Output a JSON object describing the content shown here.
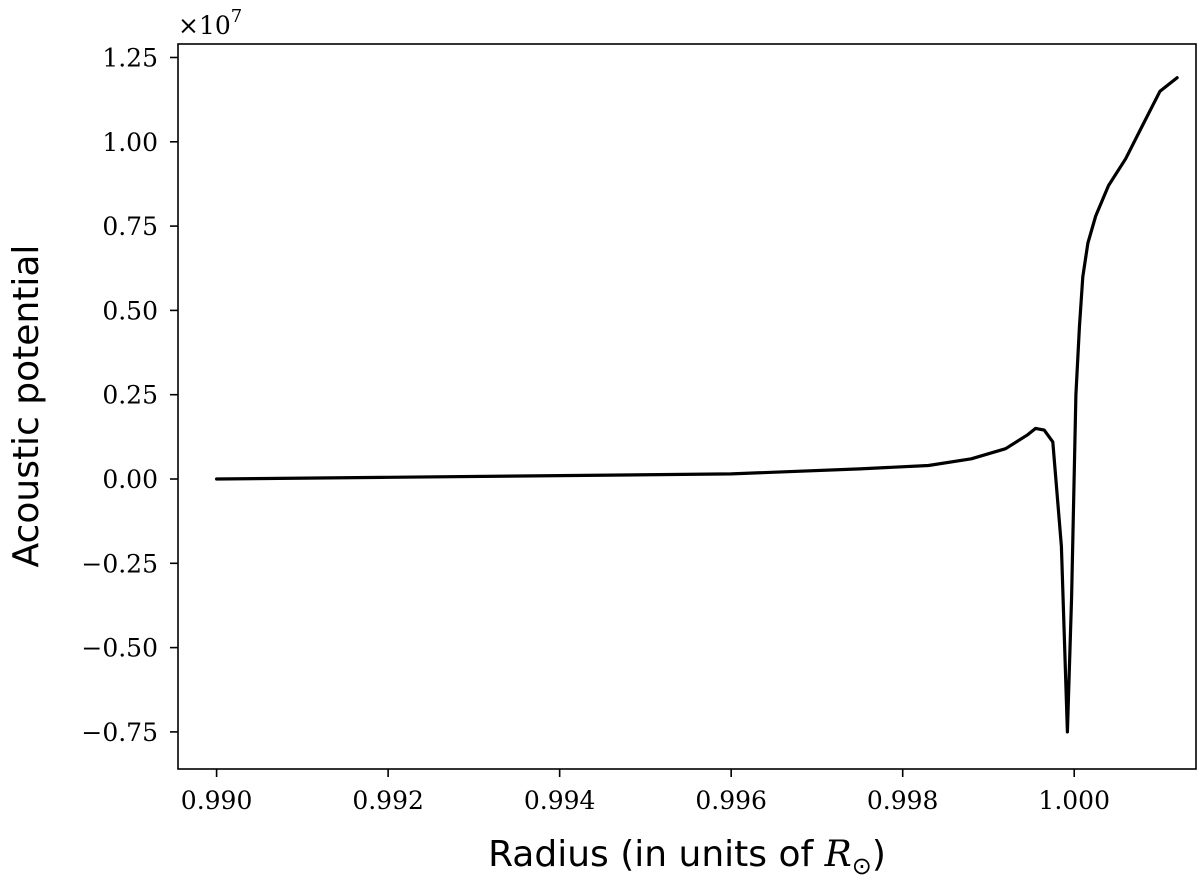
{
  "chart_data": {
    "type": "line",
    "title": "",
    "xlabel": "Radius (in units of ",
    "xlabel_math": "R",
    "xlabel_subscript": "⊙",
    "xlabel_end": ")",
    "ylabel": "Acoustic potential",
    "y_offset_base": "×10",
    "y_offset_exp": "7",
    "xlim": [
      0.98955,
      1.00142
    ],
    "ylim": [
      -0.86,
      1.29
    ],
    "y_scale_note": "values in units of 1e7",
    "grid": false,
    "legend": "none",
    "line_color": "#000000",
    "x_ticks": [
      0.99,
      0.992,
      0.994,
      0.996,
      0.998,
      1.0
    ],
    "x_tick_labels": [
      "0.990",
      "0.992",
      "0.994",
      "0.996",
      "0.998",
      "1.000"
    ],
    "y_ticks": [
      -0.75,
      -0.5,
      -0.25,
      0.0,
      0.25,
      0.5,
      0.75,
      1.0,
      1.25
    ],
    "y_tick_labels": [
      "−0.75",
      "−0.50",
      "−0.25",
      "0.00",
      "0.25",
      "0.50",
      "0.75",
      "1.00",
      "1.25"
    ],
    "series": [
      {
        "x": [
          0.99,
          0.992,
          0.994,
          0.996,
          0.9975,
          0.9983,
          0.9988,
          0.9992,
          0.99945,
          0.99955,
          0.99965,
          0.99975,
          0.99985,
          0.99992,
          0.99997,
          1.00002,
          1.00006,
          1.0001,
          1.00016,
          1.00025,
          1.0004,
          1.0006,
          1.0008,
          1.001,
          1.0012
        ],
        "y": [
          0.0,
          0.005,
          0.01,
          0.015,
          0.03,
          0.04,
          0.06,
          0.09,
          0.13,
          0.15,
          0.145,
          0.11,
          -0.2,
          -0.75,
          -0.35,
          0.25,
          0.45,
          0.6,
          0.7,
          0.78,
          0.87,
          0.95,
          1.05,
          1.15,
          1.19
        ]
      }
    ]
  }
}
